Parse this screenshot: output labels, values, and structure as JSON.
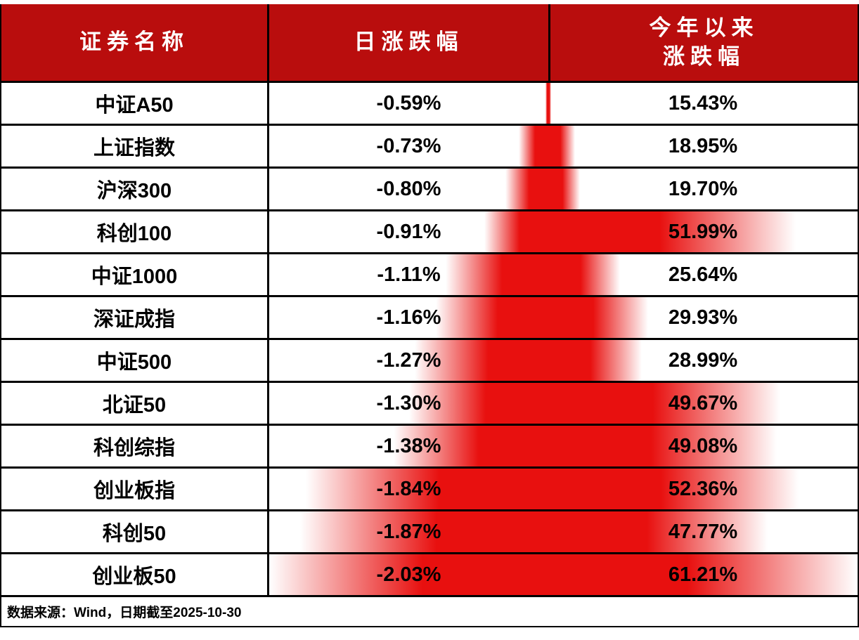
{
  "header": {
    "col1": "证券名称",
    "col2": "日涨跌幅",
    "col3_line1": "今年以来",
    "col3_line2": "涨跌幅"
  },
  "rows": [
    {
      "name": "中证A50",
      "daily": "-0.59%",
      "ytd": "15.43%"
    },
    {
      "name": "上证指数",
      "daily": "-0.73%",
      "ytd": "18.95%"
    },
    {
      "name": "沪深300",
      "daily": "-0.80%",
      "ytd": "19.70%"
    },
    {
      "name": "科创100",
      "daily": "-0.91%",
      "ytd": "51.99%"
    },
    {
      "name": "中证1000",
      "daily": "-1.11%",
      "ytd": "25.64%"
    },
    {
      "name": "深证成指",
      "daily": "-1.16%",
      "ytd": "29.93%"
    },
    {
      "name": "中证500",
      "daily": "-1.27%",
      "ytd": "28.99%"
    },
    {
      "name": "北证50",
      "daily": "-1.30%",
      "ytd": "49.67%"
    },
    {
      "name": "科创综指",
      "daily": "-1.38%",
      "ytd": "49.08%"
    },
    {
      "name": "创业板指",
      "daily": "-1.84%",
      "ytd": "52.36%"
    },
    {
      "name": "科创50",
      "daily": "-1.87%",
      "ytd": "47.77%"
    },
    {
      "name": "创业板50",
      "daily": "-2.03%",
      "ytd": "61.21%"
    }
  ],
  "footer": {
    "source": "数据来源：Wind，日期截至2025-10-30"
  },
  "colors": {
    "header_bg": "#b90d0d",
    "header_text": "#ffffff",
    "bar_red": "#e8100f",
    "border": "#000000"
  },
  "chart_data": {
    "type": "table",
    "columns": [
      "证券名称",
      "日涨跌幅(%)",
      "今年以来涨跌幅(%)"
    ],
    "rows": [
      [
        "中证A50",
        -0.59,
        15.43
      ],
      [
        "上证指数",
        -0.73,
        18.95
      ],
      [
        "沪深300",
        -0.8,
        19.7
      ],
      [
        "科创100",
        -0.91,
        51.99
      ],
      [
        "中证1000",
        -1.11,
        25.64
      ],
      [
        "深证成指",
        -1.16,
        29.93
      ],
      [
        "中证500",
        -1.27,
        28.99
      ],
      [
        "北证50",
        -1.3,
        49.67
      ],
      [
        "科创综指",
        -1.38,
        49.08
      ],
      [
        "创业板指",
        -1.84,
        52.36
      ],
      [
        "科创50",
        -1.87,
        47.77
      ],
      [
        "创业板50",
        -2.03,
        61.21
      ]
    ],
    "databars": {
      "daily_column": {
        "anchor": "right",
        "gradient_fade": "toward tip",
        "scaling": "min-max of absolute values",
        "min_abs": 0.59,
        "max_abs": 2.03
      },
      "ytd_column": {
        "anchor": "left",
        "gradient_fade": "toward tip",
        "scaling": "min-max",
        "min": 15.43,
        "max": 61.21
      }
    },
    "note": "数据来源：Wind，日期截至2025-10-30"
  }
}
